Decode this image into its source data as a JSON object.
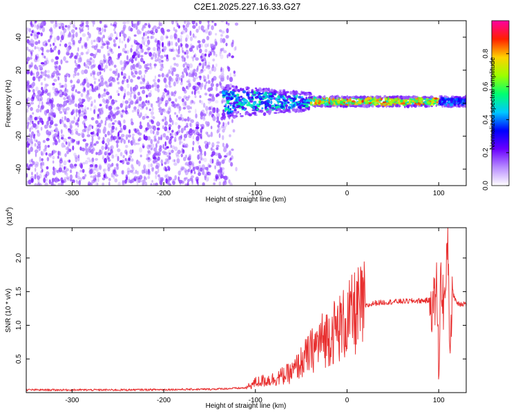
{
  "title": "C2E1.2025.227.16.33.G27",
  "colors": {
    "axis": "#000000",
    "snr_line": "#e83030",
    "spectrogram_dots": "#6a1ee8",
    "colormap": [
      "#ffffff",
      "#b88cff",
      "#6a00ff",
      "#0000ff",
      "#00c8ff",
      "#00ff70",
      "#9cff00",
      "#ffd200",
      "#ff2000",
      "#ff00a0"
    ]
  },
  "chart_data": [
    {
      "type": "heatmap",
      "xlabel": "Height of straight line (km)",
      "ylabel": "Frequency (Hz)",
      "xlim": [
        -350,
        130
      ],
      "ylim": [
        -50,
        50
      ],
      "xticks": [
        -300,
        -200,
        -100,
        0,
        100
      ],
      "yticks": [
        -40,
        -20,
        0,
        20,
        40
      ],
      "colorbar": {
        "label": "Normalized spectral amplitude",
        "range": [
          0,
          1
        ],
        "ticks": [
          0.0,
          0.2,
          0.4,
          0.6,
          0.8
        ]
      },
      "grid": false
    },
    {
      "type": "line",
      "xlabel": "Height of straight line (km)",
      "ylabel": "SNR (10 * v/v)",
      "y_multiplier": "(x10",
      "y_multiplier_exp": "4",
      "y_multiplier_close": ")",
      "xlim": [
        -350,
        130
      ],
      "ylim": [
        0,
        2.45
      ],
      "xticks": [
        -300,
        -200,
        -100,
        0,
        100
      ],
      "yticks": [
        0.5,
        1.0,
        1.5,
        2.0
      ],
      "grid": false,
      "series": [
        {
          "x": [
            -350,
            -250,
            -150,
            -110,
            -100,
            -90,
            -80,
            -70,
            -60,
            -50,
            -40,
            -30,
            -20,
            -10,
            0,
            10,
            20,
            30,
            50,
            70,
            90,
            95,
            98,
            100,
            102,
            105,
            108,
            110,
            112,
            115,
            120,
            130
          ],
          "values": [
            0.04,
            0.04,
            0.05,
            0.07,
            0.15,
            0.18,
            0.2,
            0.25,
            0.3,
            0.45,
            0.6,
            0.75,
            0.85,
            0.95,
            1.05,
            1.2,
            1.28,
            1.33,
            1.35,
            1.36,
            1.37,
            1.3,
            1.6,
            0.3,
            1.7,
            1.35,
            1.5,
            2.4,
            0.7,
            1.5,
            1.33,
            1.32
          ]
        }
      ]
    }
  ]
}
